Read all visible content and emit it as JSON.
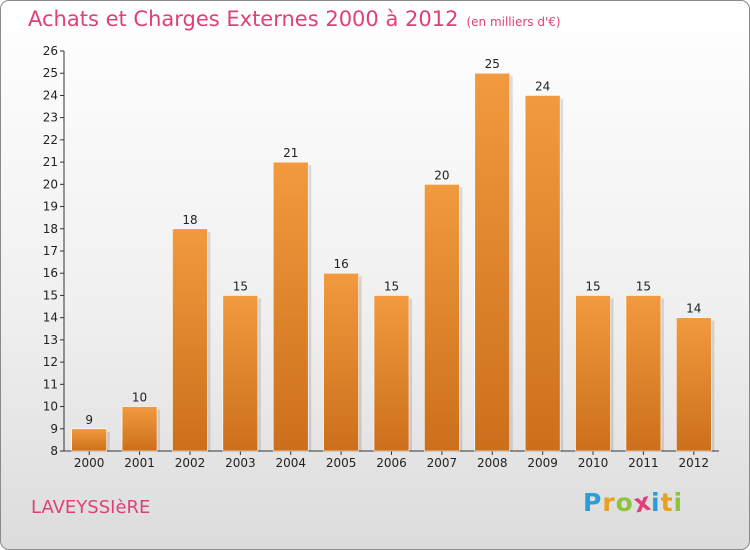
{
  "title": "Achats et Charges Externes 2000 à 2012",
  "subtitle": "(en milliers d'€)",
  "commune": "LAVEYSSIèRE",
  "logo": {
    "letters": [
      "P",
      "r",
      "o",
      "x",
      "i",
      "t",
      "i"
    ],
    "colors": [
      "#2a9ed8",
      "#e8a020",
      "#8cc43c",
      "#e0407a",
      "#2a9ed8",
      "#e8a020",
      "#8cc43c"
    ]
  },
  "chart_data": {
    "type": "bar",
    "categories": [
      "2000",
      "2001",
      "2002",
      "2003",
      "2004",
      "2005",
      "2006",
      "2007",
      "2008",
      "2009",
      "2010",
      "2011",
      "2012"
    ],
    "values": [
      9,
      10,
      18,
      15,
      21,
      16,
      15,
      20,
      25,
      24,
      15,
      15,
      14
    ],
    "ylim": [
      8,
      26
    ],
    "yticks": [
      8,
      9,
      10,
      11,
      12,
      13,
      14,
      15,
      16,
      17,
      18,
      19,
      20,
      21,
      22,
      23,
      24,
      25,
      26
    ],
    "bar_color": "#f29a3e",
    "bar_color_dark": "#cc6f1c",
    "grid": false
  }
}
